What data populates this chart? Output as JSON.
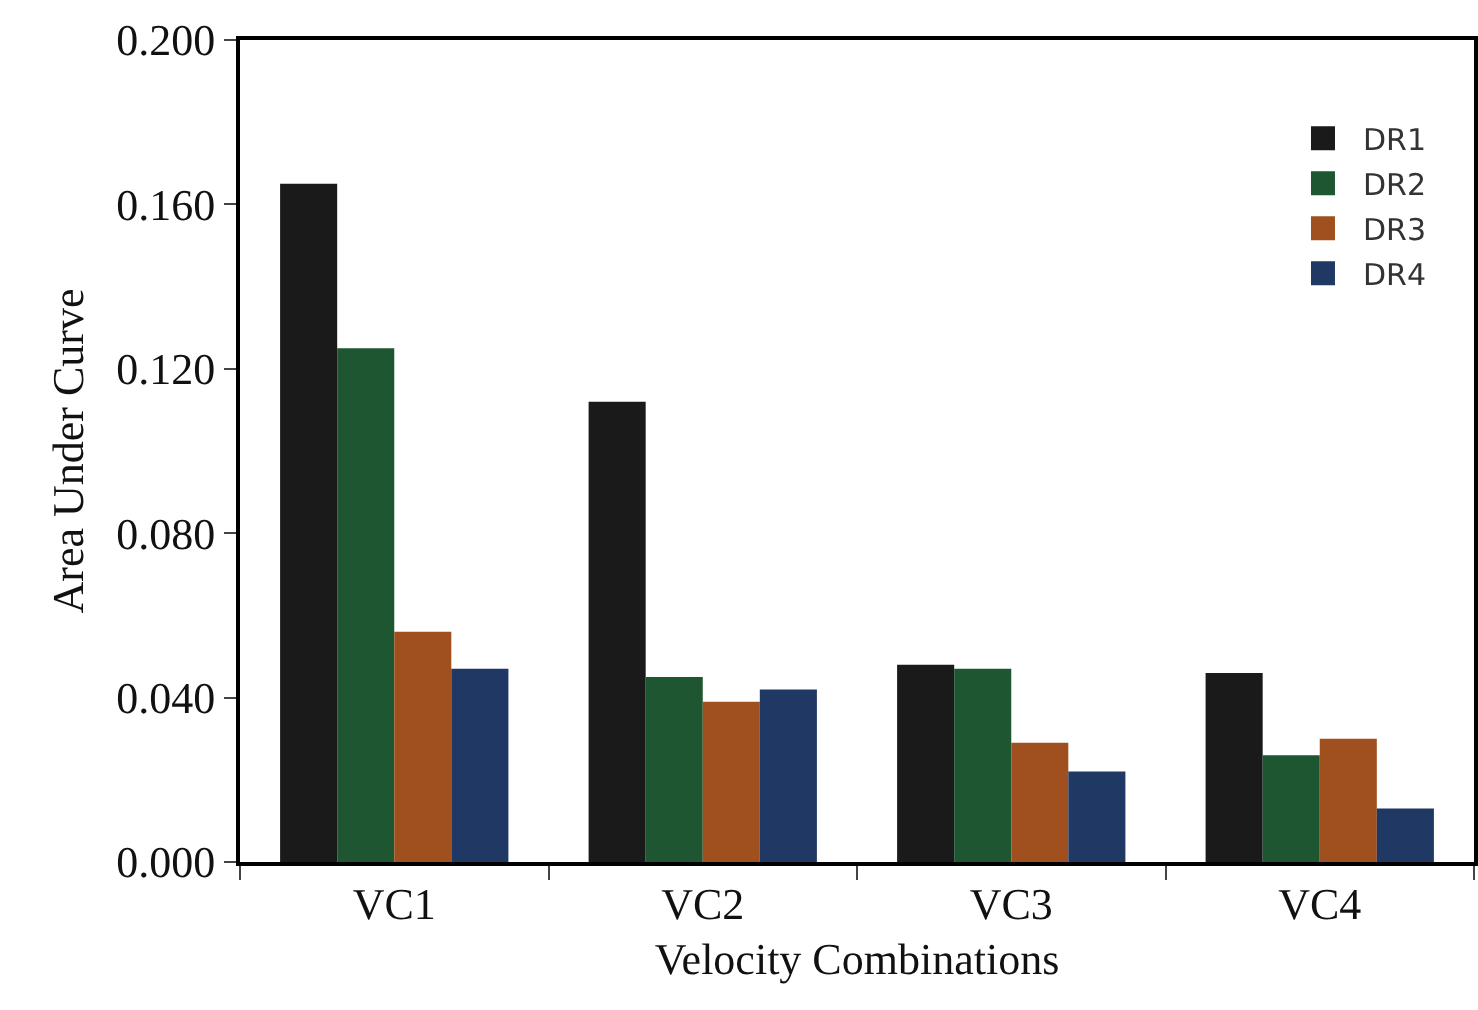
{
  "chart_data": {
    "type": "bar",
    "xlabel": "Velocity Combinations",
    "ylabel": "Area Under Curve",
    "categories": [
      "VC1",
      "VC2",
      "VC3",
      "VC4"
    ],
    "series": [
      {
        "name": "DR1",
        "color": "#1a1a1a",
        "values": [
          0.165,
          0.112,
          0.048,
          0.046
        ]
      },
      {
        "name": "DR2",
        "color": "#1e5631",
        "values": [
          0.125,
          0.045,
          0.047,
          0.026
        ]
      },
      {
        "name": "DR3",
        "color": "#a0501e",
        "values": [
          0.056,
          0.039,
          0.029,
          0.03
        ]
      },
      {
        "name": "DR4",
        "color": "#1f3864",
        "values": [
          0.047,
          0.042,
          0.022,
          0.013
        ]
      }
    ],
    "ylim": [
      0,
      0.2
    ],
    "yticks": [
      {
        "value": 0,
        "label": "0.000"
      },
      {
        "value": 0.04,
        "label": "0.040"
      },
      {
        "value": 0.08,
        "label": "0.080"
      },
      {
        "value": 0.12,
        "label": "0.120"
      },
      {
        "value": 0.16,
        "label": "0.160"
      },
      {
        "value": 0.2,
        "label": "0.200"
      }
    ],
    "grid": false,
    "legend": "top right"
  }
}
